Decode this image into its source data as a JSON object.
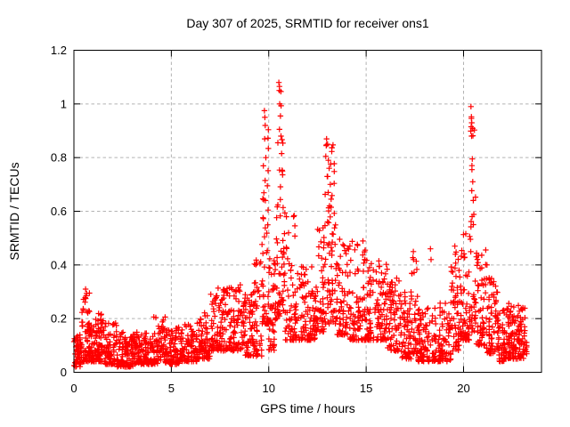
{
  "figure": {
    "background": "#ffffff",
    "border_color": "#000000"
  },
  "chart_data": {
    "type": "scatter",
    "title": "Day 307 of 2025, SRMTID for receiver ons1",
    "xlabel": "GPS time / hours",
    "ylabel": "SRMTID / TECUs",
    "xlim": [
      0,
      24
    ],
    "ylim": [
      0,
      1.2
    ],
    "xticks": [
      {
        "v": 0,
        "label": "0"
      },
      {
        "v": 5,
        "label": "5"
      },
      {
        "v": 10,
        "label": "10"
      },
      {
        "v": 15,
        "label": "15"
      },
      {
        "v": 20,
        "label": "20"
      }
    ],
    "yticks": [
      {
        "v": 0,
        "label": "0"
      },
      {
        "v": 0.2,
        "label": "0.2"
      },
      {
        "v": 0.4,
        "label": "0.4"
      },
      {
        "v": 0.6,
        "label": "0.6"
      },
      {
        "v": 0.8,
        "label": "0.8"
      },
      {
        "v": 1,
        "label": "1"
      },
      {
        "v": 1.2,
        "label": "1.2"
      }
    ],
    "grid": true,
    "grid_style": "dashed",
    "grid_color": "#b3b3b3",
    "legend": false,
    "marker": "plus",
    "marker_color": "#ff0000",
    "data_start_hour": 0.0,
    "data_end_hour": 23.25,
    "density_segments": [
      [
        0.0,
        0.4,
        0.02,
        0.14,
        60,
        1.6
      ],
      [
        0.4,
        0.8,
        0.04,
        0.3,
        55,
        2.0
      ],
      [
        0.8,
        1.2,
        0.04,
        0.2,
        55,
        1.8
      ],
      [
        1.2,
        1.6,
        0.04,
        0.22,
        55,
        2.0
      ],
      [
        1.6,
        2.2,
        0.03,
        0.19,
        70,
        1.9
      ],
      [
        2.2,
        3.1,
        0.02,
        0.15,
        100,
        1.7
      ],
      [
        3.1,
        4.1,
        0.03,
        0.15,
        110,
        1.7
      ],
      [
        4.1,
        4.7,
        0.03,
        0.21,
        65,
        2.0
      ],
      [
        4.7,
        5.5,
        0.03,
        0.17,
        85,
        1.8
      ],
      [
        5.5,
        6.3,
        0.04,
        0.19,
        85,
        1.8
      ],
      [
        6.3,
        7.0,
        0.05,
        0.23,
        80,
        1.9
      ],
      [
        7.0,
        7.8,
        0.08,
        0.32,
        85,
        1.7
      ],
      [
        7.8,
        8.6,
        0.08,
        0.33,
        85,
        1.6
      ],
      [
        8.6,
        9.25,
        0.06,
        0.3,
        70,
        1.7
      ],
      [
        9.25,
        9.65,
        0.06,
        0.45,
        45,
        1.9
      ],
      [
        9.65,
        10.0,
        0.18,
        0.95,
        48,
        2.4
      ],
      [
        10.0,
        10.35,
        0.08,
        0.46,
        45,
        1.8
      ],
      [
        10.35,
        10.8,
        0.2,
        1.05,
        60,
        2.3
      ],
      [
        10.8,
        11.5,
        0.12,
        0.6,
        70,
        2.1
      ],
      [
        11.5,
        12.45,
        0.12,
        0.4,
        95,
        1.9
      ],
      [
        12.45,
        12.85,
        0.15,
        0.55,
        45,
        1.8
      ],
      [
        12.85,
        13.45,
        0.18,
        0.85,
        70,
        2.0
      ],
      [
        13.45,
        14.1,
        0.14,
        0.5,
        65,
        2.0
      ],
      [
        14.1,
        15.1,
        0.12,
        0.5,
        105,
        2.0
      ],
      [
        15.1,
        16.1,
        0.12,
        0.42,
        105,
        1.7
      ],
      [
        16.1,
        16.7,
        0.08,
        0.36,
        65,
        1.7
      ],
      [
        16.7,
        17.3,
        0.05,
        0.3,
        65,
        1.8
      ],
      [
        17.3,
        17.65,
        0.07,
        0.44,
        40,
        2.2
      ],
      [
        17.65,
        18.65,
        0.04,
        0.24,
        100,
        1.7
      ],
      [
        18.65,
        19.35,
        0.04,
        0.26,
        70,
        1.8
      ],
      [
        19.35,
        19.85,
        0.08,
        0.46,
        55,
        1.9
      ],
      [
        19.85,
        20.3,
        0.12,
        0.52,
        55,
        1.8
      ],
      [
        20.3,
        20.62,
        0.15,
        0.97,
        38,
        2.4
      ],
      [
        20.62,
        21.15,
        0.1,
        0.46,
        55,
        1.8
      ],
      [
        21.15,
        21.75,
        0.07,
        0.36,
        65,
        1.7
      ],
      [
        21.75,
        22.35,
        0.04,
        0.26,
        75,
        1.5
      ],
      [
        22.35,
        23.25,
        0.05,
        0.25,
        115,
        1.5
      ]
    ],
    "peak_points": [
      [
        9.78,
        0.975
      ],
      [
        9.8,
        0.95
      ],
      [
        9.82,
        0.92
      ],
      [
        9.79,
        0.87
      ],
      [
        9.85,
        0.8
      ],
      [
        9.83,
        0.64
      ],
      [
        10.52,
        1.08
      ],
      [
        10.55,
        1.065
      ],
      [
        10.54,
        1.05
      ],
      [
        10.56,
        1.0
      ],
      [
        10.6,
        0.955
      ],
      [
        10.63,
        0.88
      ],
      [
        10.66,
        0.815
      ],
      [
        10.7,
        0.75
      ],
      [
        12.97,
        0.87
      ],
      [
        13.02,
        0.85
      ],
      [
        12.93,
        0.805
      ],
      [
        13.06,
        0.79
      ],
      [
        13.1,
        0.76
      ],
      [
        13.0,
        0.73
      ],
      [
        13.16,
        0.7
      ],
      [
        13.05,
        0.67
      ],
      [
        13.2,
        0.645
      ],
      [
        13.12,
        0.62
      ],
      [
        20.38,
        0.99
      ],
      [
        20.4,
        0.952
      ],
      [
        20.42,
        0.93
      ],
      [
        20.39,
        0.915
      ],
      [
        20.41,
        0.88
      ],
      [
        20.45,
        0.795
      ],
      [
        20.43,
        0.77
      ],
      [
        20.47,
        0.71
      ],
      [
        20.5,
        0.64
      ],
      [
        20.44,
        0.58
      ],
      [
        0.6,
        0.31
      ],
      [
        0.63,
        0.285
      ],
      [
        19.55,
        0.47
      ],
      [
        19.58,
        0.44
      ],
      [
        17.42,
        0.45
      ],
      [
        18.3,
        0.46
      ],
      [
        18.33,
        0.42
      ],
      [
        21.2,
        0.4
      ]
    ]
  }
}
